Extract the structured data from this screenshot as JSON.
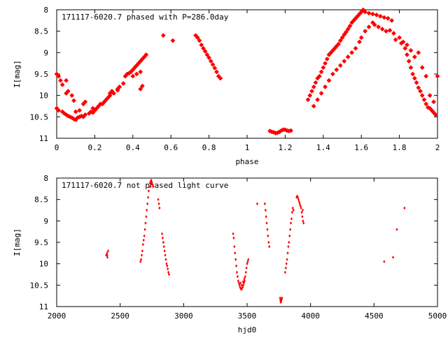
{
  "chart_data": [
    {
      "type": "scatter",
      "title": "171117-6020.7 phased with P=286.0day",
      "xlabel": "phase",
      "ylabel": "I[mag]",
      "xlim": [
        0,
        2
      ],
      "ylim": [
        11,
        8
      ],
      "y_inverted": true,
      "grid": false,
      "marker": "filled star",
      "marker_color": "#ff0000",
      "xticks": [
        "0",
        "0.2",
        "0.4",
        "0.6",
        "0.8",
        "1",
        "1.2",
        "1.4",
        "1.6",
        "1.8",
        "2"
      ],
      "yticks": [
        "8",
        "8.5",
        "9",
        "9.5",
        "10",
        "10.5",
        "11"
      ],
      "points": [
        [
          0.0,
          9.5
        ],
        [
          0.01,
          9.55
        ],
        [
          0.02,
          9.65
        ],
        [
          0.03,
          9.75
        ],
        [
          0.05,
          9.95
        ],
        [
          0.06,
          9.9
        ],
        [
          0.08,
          10.0
        ],
        [
          0.09,
          10.12
        ],
        [
          0.05,
          9.65
        ],
        [
          0.0,
          10.3
        ],
        [
          0.01,
          10.35
        ],
        [
          0.03,
          10.38
        ],
        [
          0.04,
          10.42
        ],
        [
          0.05,
          10.45
        ],
        [
          0.06,
          10.48
        ],
        [
          0.07,
          10.5
        ],
        [
          0.08,
          10.52
        ],
        [
          0.09,
          10.55
        ],
        [
          0.1,
          10.57
        ],
        [
          0.11,
          10.52
        ],
        [
          0.12,
          10.5
        ],
        [
          0.13,
          10.48
        ],
        [
          0.14,
          10.5
        ],
        [
          0.15,
          10.45
        ],
        [
          0.17,
          10.42
        ],
        [
          0.18,
          10.38
        ],
        [
          0.19,
          10.4
        ],
        [
          0.2,
          10.35
        ],
        [
          0.21,
          10.3
        ],
        [
          0.22,
          10.25
        ],
        [
          0.23,
          10.2
        ],
        [
          0.25,
          10.15
        ],
        [
          0.26,
          10.1
        ],
        [
          0.27,
          10.05
        ],
        [
          0.28,
          10.0
        ],
        [
          0.3,
          9.95
        ],
        [
          0.32,
          9.88
        ],
        [
          0.33,
          9.8
        ],
        [
          0.35,
          9.72
        ],
        [
          0.1,
          10.38
        ],
        [
          0.12,
          10.35
        ],
        [
          0.14,
          10.2
        ],
        [
          0.15,
          10.15
        ],
        [
          0.19,
          10.3
        ],
        [
          0.24,
          10.2
        ],
        [
          0.28,
          9.95
        ],
        [
          0.29,
          9.9
        ],
        [
          0.32,
          9.85
        ],
        [
          0.36,
          9.55
        ],
        [
          0.37,
          9.5
        ],
        [
          0.38,
          9.48
        ],
        [
          0.39,
          9.45
        ],
        [
          0.4,
          9.4
        ],
        [
          0.41,
          9.35
        ],
        [
          0.42,
          9.3
        ],
        [
          0.43,
          9.25
        ],
        [
          0.44,
          9.2
        ],
        [
          0.45,
          9.15
        ],
        [
          0.46,
          9.1
        ],
        [
          0.47,
          9.05
        ],
        [
          0.4,
          9.55
        ],
        [
          0.42,
          9.5
        ],
        [
          0.44,
          9.45
        ],
        [
          0.44,
          9.85
        ],
        [
          0.45,
          9.78
        ],
        [
          0.56,
          8.6
        ],
        [
          0.61,
          8.72
        ],
        [
          0.73,
          8.6
        ],
        [
          0.74,
          8.65
        ],
        [
          0.75,
          8.72
        ],
        [
          0.76,
          8.82
        ],
        [
          0.77,
          8.9
        ],
        [
          0.78,
          8.97
        ],
        [
          0.79,
          9.05
        ],
        [
          0.8,
          9.12
        ],
        [
          0.81,
          9.2
        ],
        [
          0.82,
          9.28
        ],
        [
          0.83,
          9.36
        ],
        [
          0.84,
          9.45
        ],
        [
          0.85,
          9.55
        ],
        [
          0.86,
          9.6
        ],
        [
          1.12,
          10.83
        ],
        [
          1.13,
          10.85
        ],
        [
          1.14,
          10.86
        ],
        [
          1.15,
          10.88
        ],
        [
          1.16,
          10.87
        ],
        [
          1.17,
          10.85
        ],
        [
          1.18,
          10.82
        ],
        [
          1.19,
          10.8
        ],
        [
          1.2,
          10.8
        ],
        [
          1.21,
          10.82
        ],
        [
          1.22,
          10.83
        ],
        [
          1.23,
          10.82
        ],
        [
          1.32,
          10.1
        ],
        [
          1.33,
          10.0
        ],
        [
          1.34,
          9.9
        ],
        [
          1.35,
          9.8
        ],
        [
          1.36,
          9.7
        ],
        [
          1.37,
          9.6
        ],
        [
          1.38,
          9.55
        ],
        [
          1.39,
          9.45
        ],
        [
          1.4,
          9.35
        ],
        [
          1.41,
          9.25
        ],
        [
          1.42,
          9.15
        ],
        [
          1.43,
          9.05
        ],
        [
          1.44,
          9.0
        ],
        [
          1.45,
          8.95
        ],
        [
          1.46,
          8.9
        ],
        [
          1.47,
          8.85
        ],
        [
          1.48,
          8.8
        ],
        [
          1.49,
          8.72
        ],
        [
          1.5,
          8.65
        ],
        [
          1.51,
          8.58
        ],
        [
          1.52,
          8.52
        ],
        [
          1.53,
          8.45
        ],
        [
          1.54,
          8.38
        ],
        [
          1.55,
          8.3
        ],
        [
          1.56,
          8.25
        ],
        [
          1.57,
          8.2
        ],
        [
          1.58,
          8.15
        ],
        [
          1.59,
          8.1
        ],
        [
          1.6,
          8.05
        ],
        [
          1.61,
          8.0
        ],
        [
          1.35,
          10.25
        ],
        [
          1.37,
          10.1
        ],
        [
          1.39,
          9.95
        ],
        [
          1.41,
          9.8
        ],
        [
          1.43,
          9.65
        ],
        [
          1.45,
          9.5
        ],
        [
          1.47,
          9.4
        ],
        [
          1.49,
          9.3
        ],
        [
          1.51,
          9.2
        ],
        [
          1.53,
          9.1
        ],
        [
          1.55,
          9.0
        ],
        [
          1.57,
          8.9
        ],
        [
          1.59,
          8.75
        ],
        [
          1.6,
          8.65
        ],
        [
          1.62,
          8.5
        ],
        [
          1.64,
          8.4
        ],
        [
          1.66,
          8.3
        ],
        [
          1.62,
          8.05
        ],
        [
          1.64,
          8.08
        ],
        [
          1.66,
          8.1
        ],
        [
          1.68,
          8.12
        ],
        [
          1.7,
          8.15
        ],
        [
          1.72,
          8.18
        ],
        [
          1.74,
          8.2
        ],
        [
          1.76,
          8.25
        ],
        [
          1.67,
          8.35
        ],
        [
          1.69,
          8.4
        ],
        [
          1.71,
          8.45
        ],
        [
          1.73,
          8.5
        ],
        [
          1.75,
          8.48
        ],
        [
          1.77,
          8.55
        ],
        [
          1.8,
          8.65
        ],
        [
          1.82,
          8.75
        ],
        [
          1.83,
          8.9
        ],
        [
          1.84,
          9.05
        ],
        [
          1.85,
          9.2
        ],
        [
          1.86,
          9.35
        ],
        [
          1.87,
          9.5
        ],
        [
          1.88,
          9.6
        ],
        [
          1.89,
          9.7
        ],
        [
          1.9,
          9.82
        ],
        [
          1.91,
          9.9
        ],
        [
          1.92,
          10.0
        ],
        [
          1.93,
          10.1
        ],
        [
          1.94,
          10.2
        ],
        [
          1.95,
          10.28
        ],
        [
          1.96,
          10.3
        ],
        [
          1.97,
          10.35
        ],
        [
          1.98,
          10.4
        ],
        [
          1.99,
          10.45
        ],
        [
          1.78,
          8.7
        ],
        [
          1.81,
          8.78
        ],
        [
          1.84,
          8.82
        ],
        [
          1.86,
          8.95
        ],
        [
          1.88,
          9.1
        ],
        [
          1.9,
          9.0
        ],
        [
          1.92,
          9.35
        ],
        [
          1.94,
          9.55
        ],
        [
          1.96,
          10.0
        ],
        [
          1.98,
          10.15
        ],
        [
          2.0,
          9.55
        ]
      ]
    },
    {
      "type": "scatter",
      "title": "171117-6020.7 not phased light curve",
      "xlabel": "hjd0",
      "ylabel": "I[mag]",
      "xlim": [
        2000,
        5000
      ],
      "ylim": [
        11,
        8
      ],
      "y_inverted": true,
      "grid": false,
      "marker": "small diamond",
      "marker_color": "#ff0000",
      "xticks": [
        "2000",
        "2500",
        "3000",
        "3500",
        "4000",
        "4500",
        "5000"
      ],
      "yticks": [
        "8",
        "8.5",
        "9",
        "9.5",
        "10",
        "10.5",
        "11"
      ],
      "points": [
        [
          2397,
          9.75
        ],
        [
          2398,
          9.8
        ],
        [
          2400,
          9.85
        ],
        [
          2405,
          9.7
        ],
        [
          2660,
          9.95
        ],
        [
          2665,
          9.9
        ],
        [
          2670,
          9.8
        ],
        [
          2675,
          9.7
        ],
        [
          2680,
          9.55
        ],
        [
          2685,
          9.45
        ],
        [
          2690,
          9.35
        ],
        [
          2695,
          9.2
        ],
        [
          2700,
          9.05
        ],
        [
          2705,
          8.9
        ],
        [
          2710,
          8.75
        ],
        [
          2715,
          8.6
        ],
        [
          2720,
          8.45
        ],
        [
          2725,
          8.3
        ],
        [
          2730,
          8.2
        ],
        [
          2735,
          8.12
        ],
        [
          2740,
          8.08
        ],
        [
          2745,
          8.05
        ],
        [
          2750,
          8.1
        ],
        [
          2755,
          8.15
        ],
        [
          2760,
          8.2
        ],
        [
          2745,
          8.12
        ],
        [
          2800,
          8.5
        ],
        [
          2805,
          8.6
        ],
        [
          2810,
          8.7
        ],
        [
          2830,
          9.3
        ],
        [
          2835,
          9.4
        ],
        [
          2840,
          9.5
        ],
        [
          2845,
          9.6
        ],
        [
          2850,
          9.7
        ],
        [
          2855,
          9.8
        ],
        [
          2860,
          9.9
        ],
        [
          2865,
          10.0
        ],
        [
          2870,
          10.05
        ],
        [
          2875,
          10.12
        ],
        [
          2880,
          10.2
        ],
        [
          2885,
          10.25
        ],
        [
          2390,
          9.8
        ],
        [
          3390,
          9.3
        ],
        [
          3395,
          9.4
        ],
        [
          3400,
          9.6
        ],
        [
          3405,
          9.75
        ],
        [
          3410,
          9.9
        ],
        [
          3415,
          10.05
        ],
        [
          3420,
          10.2
        ],
        [
          3425,
          10.3
        ],
        [
          3430,
          10.4
        ],
        [
          3435,
          10.45
        ],
        [
          3440,
          10.5
        ],
        [
          3445,
          10.55
        ],
        [
          3450,
          10.58
        ],
        [
          3455,
          10.6
        ],
        [
          3460,
          10.57
        ],
        [
          3465,
          10.55
        ],
        [
          3470,
          10.5
        ],
        [
          3475,
          10.45
        ],
        [
          3480,
          10.4
        ],
        [
          3485,
          10.3
        ],
        [
          3490,
          10.2
        ],
        [
          3495,
          10.1
        ],
        [
          3500,
          10.0
        ],
        [
          3505,
          9.95
        ],
        [
          3510,
          9.9
        ],
        [
          3448,
          10.45
        ],
        [
          3458,
          10.5
        ],
        [
          3468,
          10.42
        ],
        [
          3478,
          10.35
        ],
        [
          3580,
          8.6
        ],
        [
          3640,
          8.6
        ],
        [
          3645,
          8.75
        ],
        [
          3650,
          8.9
        ],
        [
          3655,
          9.05
        ],
        [
          3660,
          9.2
        ],
        [
          3665,
          9.35
        ],
        [
          3670,
          9.5
        ],
        [
          3675,
          9.6
        ],
        [
          3760,
          10.8
        ],
        [
          3762,
          10.85
        ],
        [
          3765,
          10.9
        ],
        [
          3768,
          10.88
        ],
        [
          3770,
          10.85
        ],
        [
          3772,
          10.82
        ],
        [
          3775,
          10.8
        ],
        [
          3800,
          10.2
        ],
        [
          3805,
          10.1
        ],
        [
          3810,
          10.0
        ],
        [
          3815,
          9.9
        ],
        [
          3820,
          9.75
        ],
        [
          3825,
          9.6
        ],
        [
          3830,
          9.5
        ],
        [
          3835,
          9.35
        ],
        [
          3840,
          9.2
        ],
        [
          3845,
          9.05
        ],
        [
          3850,
          8.95
        ],
        [
          3855,
          8.8
        ],
        [
          3860,
          8.7
        ],
        [
          3865,
          8.75
        ],
        [
          3890,
          8.45
        ],
        [
          3895,
          8.42
        ],
        [
          3900,
          8.45
        ],
        [
          3905,
          8.5
        ],
        [
          3910,
          8.55
        ],
        [
          3915,
          8.6
        ],
        [
          3920,
          8.65
        ],
        [
          3925,
          8.7
        ],
        [
          3930,
          8.8
        ],
        [
          3935,
          8.9
        ],
        [
          3940,
          9.0
        ],
        [
          3945,
          9.05
        ],
        [
          3938,
          8.75
        ],
        [
          4580,
          9.95
        ],
        [
          4650,
          9.85
        ],
        [
          4680,
          9.2
        ],
        [
          4740,
          8.7
        ]
      ]
    }
  ]
}
